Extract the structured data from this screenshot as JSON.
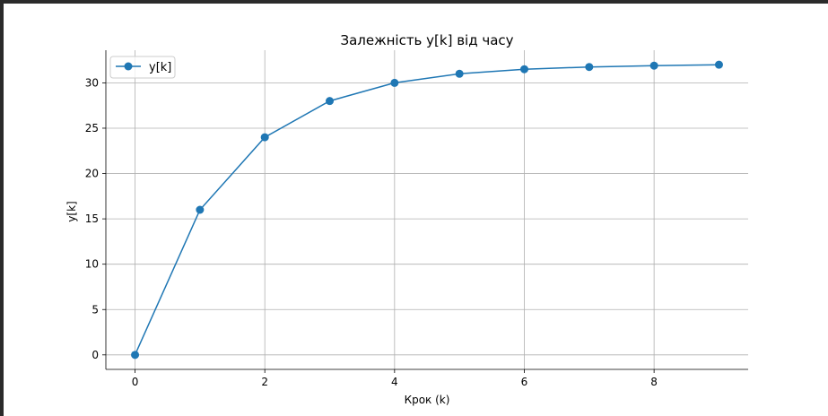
{
  "chart_data": {
    "type": "line",
    "title": "Залежність y[k] від часу",
    "xlabel": "Крок (k)",
    "ylabel": "y[k]",
    "xlim": [
      -0.45,
      9.45
    ],
    "ylim": [
      -1.6,
      33.6
    ],
    "xticks": [
      0,
      2,
      4,
      6,
      8
    ],
    "yticks": [
      0,
      5,
      10,
      15,
      20,
      25,
      30
    ],
    "grid": true,
    "legend_position": "top-left",
    "series": [
      {
        "name": "y[k]",
        "color": "#1f77b4",
        "marker": "circle",
        "x": [
          0,
          1,
          2,
          3,
          4,
          5,
          6,
          7,
          8,
          9
        ],
        "y": [
          0,
          16,
          24,
          28,
          30,
          31,
          31.5,
          31.75,
          31.9,
          32
        ]
      }
    ]
  }
}
